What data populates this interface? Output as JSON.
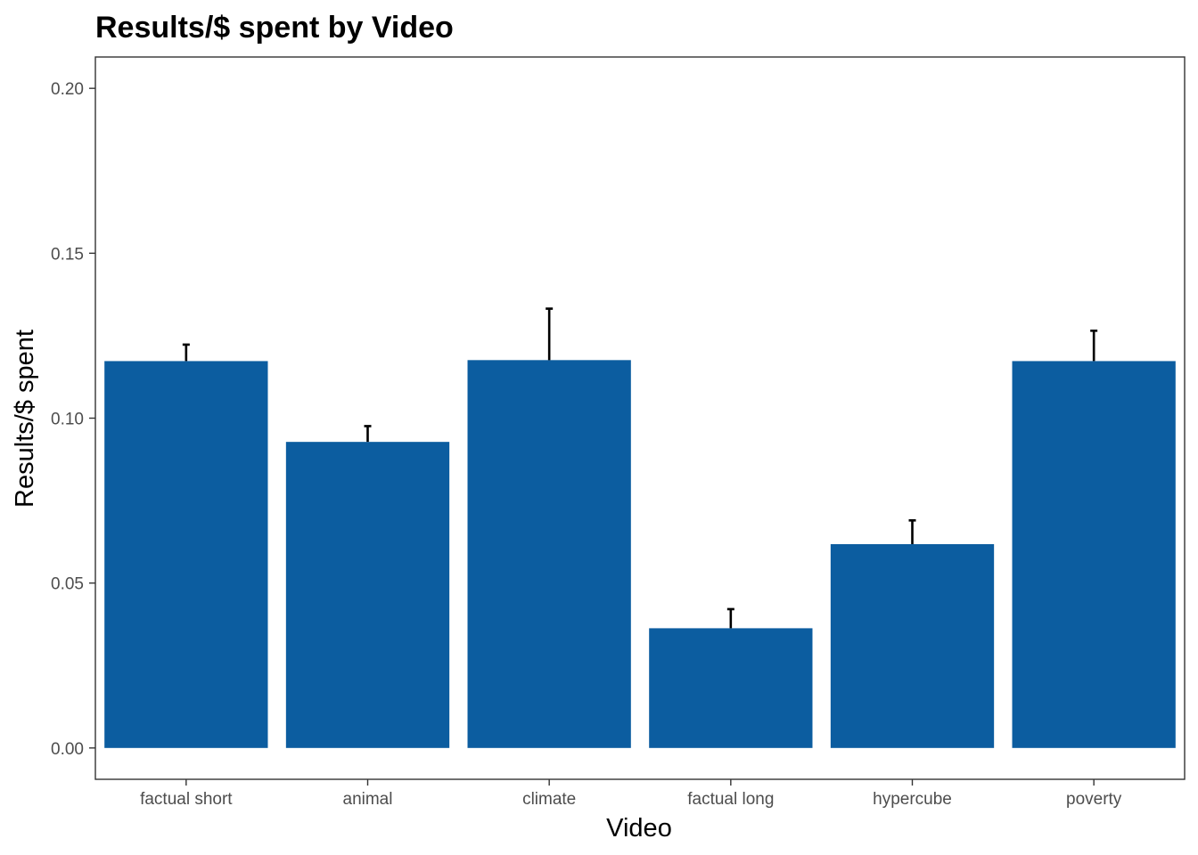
{
  "chart_data": {
    "type": "bar",
    "title": "Results/$ spent by Video",
    "xlabel": "Video",
    "ylabel": "Results/$ spent",
    "categories": [
      "factual short",
      "animal",
      "climate",
      "factual long",
      "hypercube",
      "poverty"
    ],
    "values": [
      0.1173,
      0.0928,
      0.1176,
      0.0363,
      0.0618,
      0.1173
    ],
    "error_upper": [
      0.1223,
      0.0976,
      0.1332,
      0.0421,
      0.069,
      0.1265
    ],
    "ylim": [
      -0.0095,
      0.2095
    ],
    "yticks": [
      0.0,
      0.05,
      0.1,
      0.15,
      0.2
    ],
    "ytick_labels": [
      "0.00",
      "0.05",
      "0.10",
      "0.15",
      "0.20"
    ],
    "grid": false,
    "legend": "none",
    "bar_color": "#0c5da0"
  }
}
